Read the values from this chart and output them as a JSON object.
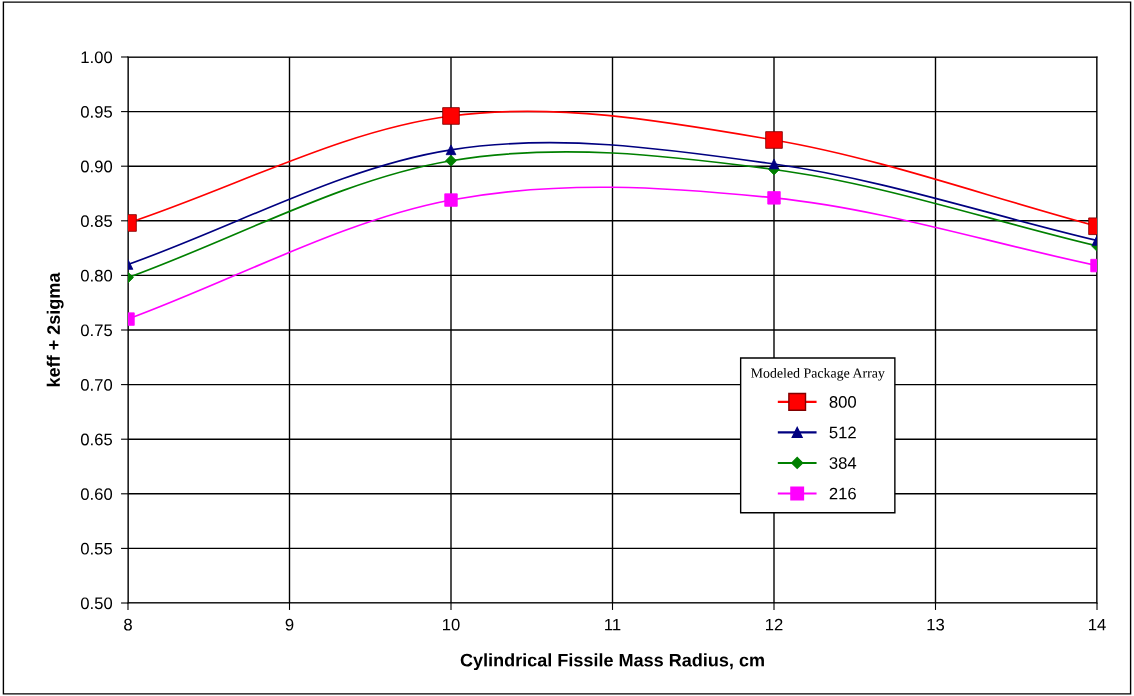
{
  "chart_data": {
    "type": "line",
    "xlabel": "Cylindrical Fissile Mass Radius, cm",
    "ylabel": "keff + 2sigma",
    "legend_title": "Modeled Package Array",
    "legend": "lower right",
    "grid": true,
    "x": [
      8,
      10,
      12,
      14
    ],
    "xlim": [
      8,
      14
    ],
    "xticks": [
      8,
      9,
      10,
      11,
      12,
      13,
      14
    ],
    "ylim": [
      0.5,
      1.0
    ],
    "yticks": [
      {
        "value": 0.5,
        "label": "0.50"
      },
      {
        "value": 0.55,
        "label": "0.55"
      },
      {
        "value": 0.6,
        "label": "0.60"
      },
      {
        "value": 0.65,
        "label": "0.65"
      },
      {
        "value": 0.7,
        "label": "0.70"
      },
      {
        "value": 0.75,
        "label": "0.75"
      },
      {
        "value": 0.8,
        "label": "0.80"
      },
      {
        "value": 0.85,
        "label": "0.85"
      },
      {
        "value": 0.9,
        "label": "0.90"
      },
      {
        "value": 0.95,
        "label": "0.95"
      },
      {
        "value": 1.0,
        "label": "1.00"
      }
    ],
    "series": [
      {
        "name": "800",
        "color": "#ff0000",
        "marker": "square",
        "values": [
          0.848,
          0.946,
          0.924,
          0.845
        ]
      },
      {
        "name": "512",
        "color": "#000080",
        "marker": "triangle",
        "values": [
          0.81,
          0.915,
          0.902,
          0.832
        ]
      },
      {
        "name": "384",
        "color": "#008000",
        "marker": "diamond",
        "values": [
          0.798,
          0.905,
          0.897,
          0.827
        ]
      },
      {
        "name": "216",
        "color": "#ff00ff",
        "marker": "square",
        "values": [
          0.76,
          0.869,
          0.871,
          0.809
        ]
      }
    ]
  }
}
